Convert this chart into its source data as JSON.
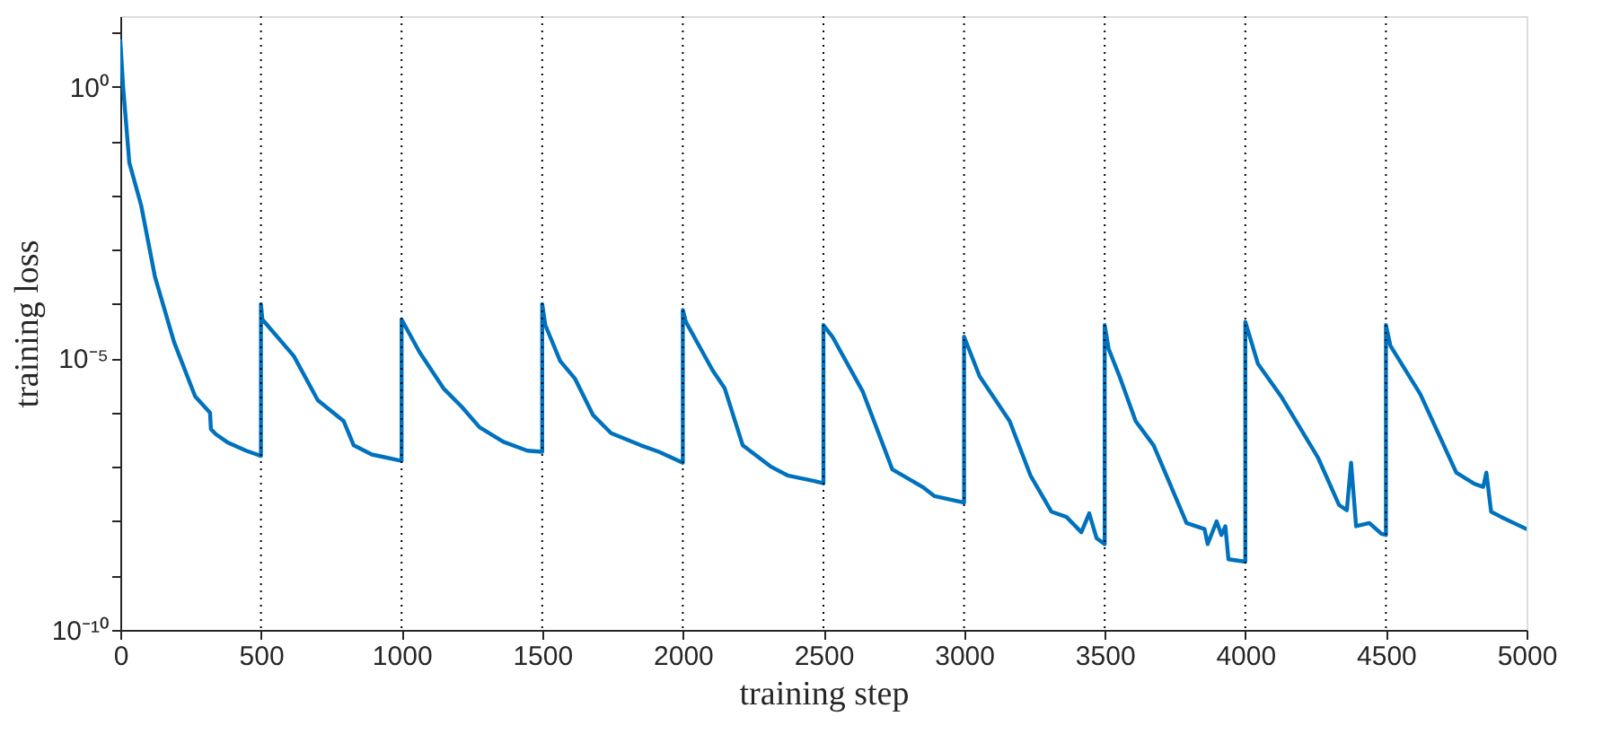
{
  "chart_data": {
    "type": "line",
    "xlabel": "training step",
    "ylabel": "training loss",
    "log": "y",
    "grid": false,
    "marker": "none",
    "line_style": "solid",
    "xlim": [
      0,
      5000
    ],
    "xticks": [
      0,
      500,
      1000,
      1500,
      2000,
      2500,
      3000,
      3500,
      4000,
      4500,
      5000
    ],
    "ylim": [
      1e-10,
      20
    ],
    "yticks": [
      {
        "value": 1e-10,
        "label": "10⁻¹⁰"
      },
      {
        "value": 1e-09,
        "label": null
      },
      {
        "value": 1e-08,
        "label": null
      },
      {
        "value": 1e-07,
        "label": null
      },
      {
        "value": 1e-06,
        "label": null
      },
      {
        "value": 1e-05,
        "label": "10⁻⁵"
      },
      {
        "value": 0.0001,
        "label": null
      },
      {
        "value": 0.001,
        "label": null
      },
      {
        "value": 0.01,
        "label": null
      },
      {
        "value": 0.1,
        "label": null
      },
      {
        "value": 1,
        "label": "10⁰"
      },
      {
        "value": 10,
        "label": null
      }
    ],
    "ref_lines": [
      {
        "axis": "x",
        "value": 500,
        "color": "#000000",
        "line_style": "dotted"
      },
      {
        "axis": "x",
        "value": 1000,
        "color": "#000000",
        "line_style": "dotted"
      },
      {
        "axis": "x",
        "value": 1500,
        "color": "#000000",
        "line_style": "dotted"
      },
      {
        "axis": "x",
        "value": 2000,
        "color": "#000000",
        "line_style": "dotted"
      },
      {
        "axis": "x",
        "value": 2500,
        "color": "#000000",
        "line_style": "dotted"
      },
      {
        "axis": "x",
        "value": 3000,
        "color": "#000000",
        "line_style": "dotted"
      },
      {
        "axis": "x",
        "value": 3500,
        "color": "#000000",
        "line_style": "dotted"
      },
      {
        "axis": "x",
        "value": 4000,
        "color": "#000000",
        "line_style": "dotted"
      },
      {
        "axis": "x",
        "value": 4500,
        "color": "#000000",
        "line_style": "dotted"
      }
    ],
    "series": [
      {
        "color": "#0072bd",
        "x": [
          0,
          10,
          32,
          74,
          123,
          191,
          266,
          319,
          322,
          340,
          383,
          447,
          500,
          500,
          505,
          617,
          702,
          794,
          830,
          894,
          1000,
          1000,
          1064,
          1149,
          1213,
          1277,
          1362,
          1447,
          1500,
          1500,
          1511,
          1564,
          1617,
          1681,
          1745,
          1851,
          1915,
          2000,
          2000,
          2011,
          2106,
          2149,
          2213,
          2315,
          2372,
          2468,
          2500,
          2500,
          2532,
          2639,
          2745,
          2852,
          2895,
          3000,
          3000,
          3055,
          3162,
          3236,
          3311,
          3364,
          3417,
          3445,
          3471,
          3500,
          3500,
          3514,
          3556,
          3610,
          3674,
          3791,
          3855,
          3866,
          3898,
          3915,
          3929,
          3940,
          4000,
          4000,
          4045,
          4130,
          4258,
          4333,
          4361,
          4376,
          4394,
          4441,
          4484,
          4500,
          4500,
          4516,
          4622,
          4750,
          4814,
          4846,
          4857,
          4874,
          4910,
          5000
        ],
        "values": [
          7,
          1,
          0.04,
          0.0066,
          0.00032,
          2e-05,
          2e-06,
          1e-06,
          5e-07,
          4e-07,
          2.8e-07,
          2e-07,
          1.6e-07,
          0.0001,
          5.2e-05,
          1.1e-05,
          1.7e-06,
          7e-07,
          2.5e-07,
          1.7e-07,
          1.3e-07,
          5.2e-05,
          1.3e-05,
          2.8e-06,
          1.3e-06,
          5.4e-07,
          2.9e-07,
          2e-07,
          1.9e-07,
          0.0001,
          4.1e-05,
          8.9e-06,
          4.2e-06,
          9e-07,
          4.2e-07,
          2.5e-07,
          1.9e-07,
          1.2e-07,
          7.8e-05,
          4.7e-05,
          6e-06,
          2.8e-06,
          2.5e-07,
          1e-07,
          7e-08,
          5.5e-08,
          5e-08,
          4.1e-05,
          2.5e-05,
          2.5e-06,
          9e-08,
          4.3e-08,
          2.9e-08,
          2.2e-08,
          2.5e-05,
          4.7e-06,
          7e-07,
          7e-08,
          1.5e-08,
          1.2e-08,
          6.3e-09,
          1.4e-08,
          4.9e-09,
          3.8e-09,
          4.1e-05,
          1.5e-05,
          4.2e-06,
          7e-07,
          2.5e-07,
          9.3e-09,
          7.2e-09,
          3.8e-09,
          1e-08,
          5.6e-09,
          8.1e-09,
          2e-09,
          1.8e-09,
          4.7e-05,
          7.9e-06,
          1.9e-06,
          1.5e-07,
          2e-08,
          1.6e-08,
          1.2e-07,
          8.1e-09,
          9.3e-09,
          5.9e-09,
          5.6e-09,
          4.1e-05,
          1.7e-05,
          2.2e-06,
          7.9e-08,
          4.9e-08,
          4.3e-08,
          7.9e-08,
          1.5e-08,
          1.2e-08,
          7.2e-09
        ]
      }
    ]
  }
}
